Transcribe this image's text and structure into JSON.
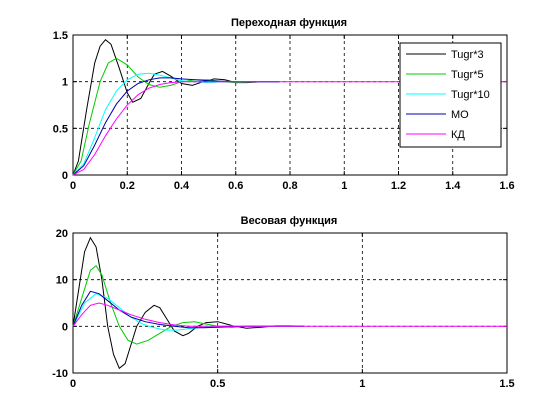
{
  "figure": {
    "background": "#ffffff"
  },
  "chart_data": [
    {
      "type": "line",
      "title": "Переходная функция",
      "xlabel": "",
      "ylabel": "",
      "xlim": [
        0,
        1.6
      ],
      "ylim": [
        0,
        1.5
      ],
      "x_ticks": [
        0,
        0.2,
        0.4,
        0.6,
        0.8,
        1,
        1.2,
        1.4,
        1.6
      ],
      "x_tick_labels": [
        "0",
        "0.2",
        "0.4",
        "0.6",
        "0.8",
        "1",
        "1.2",
        "1.4",
        "1.6"
      ],
      "y_ticks": [
        0,
        0.5,
        1,
        1.5
      ],
      "y_tick_labels": [
        "0",
        "0.5",
        "1",
        "1.5"
      ],
      "grid": true,
      "legend_position": "top-right",
      "series": [
        {
          "name": "Tugr*3",
          "color": "#000000",
          "x": [
            0,
            0.02,
            0.05,
            0.08,
            0.1,
            0.12,
            0.14,
            0.17,
            0.2,
            0.22,
            0.25,
            0.28,
            0.3,
            0.33,
            0.36,
            0.4,
            0.44,
            0.48,
            0.52,
            0.56,
            0.6,
            0.64,
            0.7,
            0.76
          ],
          "y": [
            0,
            0.15,
            0.7,
            1.2,
            1.38,
            1.45,
            1.4,
            1.15,
            0.88,
            0.78,
            0.82,
            0.98,
            1.08,
            1.11,
            1.06,
            0.98,
            0.96,
            1.0,
            1.03,
            1.02,
            0.99,
            0.99,
            1.0,
            1.0
          ]
        },
        {
          "name": "Tugr*5",
          "color": "#00cc00",
          "x": [
            0,
            0.03,
            0.06,
            0.1,
            0.13,
            0.16,
            0.2,
            0.24,
            0.28,
            0.32,
            0.36,
            0.4,
            0.45,
            0.5,
            0.55,
            0.6,
            0.7,
            0.76
          ],
          "y": [
            0,
            0.15,
            0.55,
            1.0,
            1.2,
            1.25,
            1.18,
            1.05,
            0.97,
            0.94,
            0.96,
            1.0,
            1.02,
            1.02,
            1.0,
            0.99,
            1.0,
            1.0
          ]
        },
        {
          "name": "Tugr*10",
          "color": "#00ffff",
          "x": [
            0,
            0.04,
            0.08,
            0.12,
            0.16,
            0.2,
            0.24,
            0.28,
            0.32,
            0.36,
            0.4,
            0.45,
            0.5,
            0.55,
            0.6,
            0.7,
            0.76
          ],
          "y": [
            0,
            0.12,
            0.4,
            0.7,
            0.9,
            1.02,
            1.08,
            1.09,
            1.07,
            1.04,
            1.01,
            1.0,
            0.99,
            1.0,
            1.0,
            1.0,
            1.0
          ]
        },
        {
          "name": "МО",
          "color": "#0000aa",
          "x": [
            0,
            0.04,
            0.08,
            0.12,
            0.16,
            0.2,
            0.24,
            0.28,
            0.32,
            0.36,
            0.4,
            0.45,
            0.5,
            0.6,
            0.7,
            0.76
          ],
          "y": [
            0,
            0.1,
            0.32,
            0.56,
            0.76,
            0.9,
            0.98,
            1.02,
            1.04,
            1.04,
            1.03,
            1.02,
            1.01,
            1.0,
            1.0,
            1.0
          ]
        },
        {
          "name": "КД",
          "color": "#ff00ff",
          "x": [
            0,
            0.04,
            0.08,
            0.12,
            0.16,
            0.2,
            0.24,
            0.28,
            0.32,
            0.36,
            0.4,
            0.45,
            0.5,
            0.6,
            0.7,
            0.76,
            0.8,
            1.0,
            1.2,
            1.4,
            1.6
          ],
          "y": [
            0,
            0.06,
            0.22,
            0.42,
            0.6,
            0.75,
            0.86,
            0.93,
            0.97,
            0.99,
            1.0,
            1.0,
            1.0,
            1.0,
            1.0,
            1.0,
            1.0,
            1.0,
            1.0,
            1.0,
            1.0
          ]
        }
      ]
    },
    {
      "type": "line",
      "title": "Весовая функция",
      "xlabel": "",
      "ylabel": "",
      "xlim": [
        0,
        1.5
      ],
      "ylim": [
        -10,
        20
      ],
      "x_ticks": [
        0,
        0.5,
        1,
        1.5
      ],
      "x_tick_labels": [
        "0",
        "0.5",
        "1",
        "1.5"
      ],
      "y_ticks": [
        -10,
        0,
        10,
        20
      ],
      "y_tick_labels": [
        "-10",
        "0",
        "10",
        "20"
      ],
      "grid": true,
      "series": [
        {
          "name": "Tugr*3",
          "color": "#000000",
          "x": [
            0,
            0.02,
            0.04,
            0.06,
            0.08,
            0.1,
            0.12,
            0.14,
            0.16,
            0.18,
            0.2,
            0.22,
            0.25,
            0.28,
            0.3,
            0.32,
            0.35,
            0.38,
            0.4,
            0.43,
            0.46,
            0.5,
            0.53,
            0.56,
            0.6,
            0.65,
            0.7,
            0.75,
            0.8
          ],
          "y": [
            0,
            8,
            16,
            19,
            17,
            10,
            0,
            -6,
            -9,
            -8,
            -4,
            0,
            3,
            4.5,
            4,
            2,
            -1,
            -2,
            -1.5,
            0,
            0.8,
            1,
            0.5,
            0,
            -0.4,
            -0.2,
            0.1,
            0.1,
            0
          ]
        },
        {
          "name": "Tugr*5",
          "color": "#00cc00",
          "x": [
            0,
            0.03,
            0.06,
            0.08,
            0.1,
            0.13,
            0.16,
            0.19,
            0.22,
            0.26,
            0.3,
            0.34,
            0.38,
            0.42,
            0.46,
            0.5,
            0.55,
            0.6,
            0.7,
            0.8
          ],
          "y": [
            0,
            6,
            12,
            13,
            11,
            5,
            0,
            -3,
            -3.8,
            -3,
            -1.5,
            0,
            0.8,
            1,
            0.5,
            0,
            -0.2,
            0,
            0,
            0
          ]
        },
        {
          "name": "Tugr*10",
          "color": "#00ffff",
          "x": [
            0,
            0.04,
            0.08,
            0.12,
            0.16,
            0.2,
            0.24,
            0.28,
            0.32,
            0.36,
            0.4,
            0.45,
            0.5,
            0.55,
            0.6,
            0.7,
            0.8
          ],
          "y": [
            0,
            5,
            7,
            6,
            4,
            2,
            0.5,
            -0.3,
            -0.8,
            -0.8,
            -0.5,
            -0.2,
            0,
            0.1,
            0,
            0,
            0
          ]
        },
        {
          "name": "МО",
          "color": "#0000aa",
          "x": [
            0,
            0.03,
            0.06,
            0.09,
            0.12,
            0.16,
            0.2,
            0.25,
            0.3,
            0.35,
            0.4,
            0.45,
            0.5,
            0.6,
            0.7,
            0.8
          ],
          "y": [
            0,
            4.5,
            7.5,
            7,
            5.5,
            3.5,
            2,
            1,
            0.4,
            0,
            -0.3,
            -0.3,
            -0.2,
            0,
            0,
            0
          ]
        },
        {
          "name": "КД",
          "color": "#ff00ff",
          "x": [
            0,
            0.03,
            0.06,
            0.09,
            0.12,
            0.16,
            0.2,
            0.25,
            0.3,
            0.35,
            0.4,
            0.5,
            0.6,
            0.8,
            1.0,
            1.5
          ],
          "y": [
            0,
            2.5,
            4.5,
            5,
            4.5,
            3.5,
            2.5,
            1.5,
            0.8,
            0.3,
            0,
            0,
            0,
            0,
            0,
            0
          ]
        }
      ]
    }
  ]
}
